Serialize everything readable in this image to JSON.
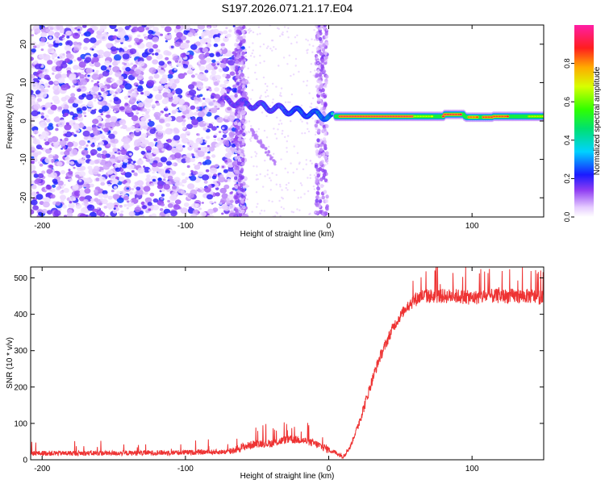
{
  "title": "S197.2026.071.21.17.E04",
  "chart_data": [
    {
      "type": "heatmap",
      "xlabel": "Height of straight line (km)",
      "ylabel": "Frequency (Hz)",
      "xlim": [
        -208,
        150
      ],
      "ylim": [
        -25,
        25
      ],
      "xticks": [
        -200,
        -100,
        0,
        100
      ],
      "yticks": [
        -20,
        -10,
        0,
        10,
        20
      ],
      "colorbar": {
        "label": "Normalized spectral amplitude",
        "range": [
          0,
          1
        ],
        "ticks": [
          0.0,
          0.2,
          0.4,
          0.6,
          0.8
        ],
        "colormap": "white-purple-blue-cyan-green-yellow-red-magenta"
      },
      "features": [
        {
          "description": "noise band",
          "x_range": [
            -208,
            -60
          ],
          "y_range": [
            -25,
            25
          ],
          "amplitude": 0.1
        },
        {
          "description": "signal track",
          "x_range": [
            -75,
            0
          ],
          "y_range": [
            0,
            6
          ],
          "amplitude": 0.3
        },
        {
          "description": "carrier line",
          "x_range": [
            5,
            150
          ],
          "y_range": [
            0.5,
            2.5
          ],
          "amplitude": 0.9
        }
      ]
    },
    {
      "type": "line",
      "xlabel": "Height of straight line (km)",
      "ylabel": "SNR (10 * v/v)",
      "xlim": [
        -208,
        150
      ],
      "ylim": [
        0,
        530
      ],
      "xticks": [
        -200,
        -100,
        0,
        100
      ],
      "yticks": [
        0,
        100,
        200,
        300,
        400,
        500
      ],
      "grid": false,
      "color": "#ee3333",
      "series": [
        {
          "x": [
            -208,
            -150,
            -100,
            -70,
            -60,
            -50,
            -40,
            -30,
            -20,
            -10,
            0,
            10,
            15,
            20,
            25,
            30,
            35,
            40,
            45,
            50,
            55,
            60,
            65,
            70,
            80,
            90,
            100,
            110,
            120,
            130,
            140,
            150
          ],
          "y": [
            18,
            18,
            20,
            22,
            35,
            45,
            45,
            55,
            55,
            45,
            28,
            10,
            35,
            90,
            150,
            215,
            275,
            320,
            365,
            395,
            425,
            440,
            450,
            450,
            450,
            450,
            445,
            450,
            450,
            450,
            450,
            445
          ]
        }
      ]
    }
  ]
}
